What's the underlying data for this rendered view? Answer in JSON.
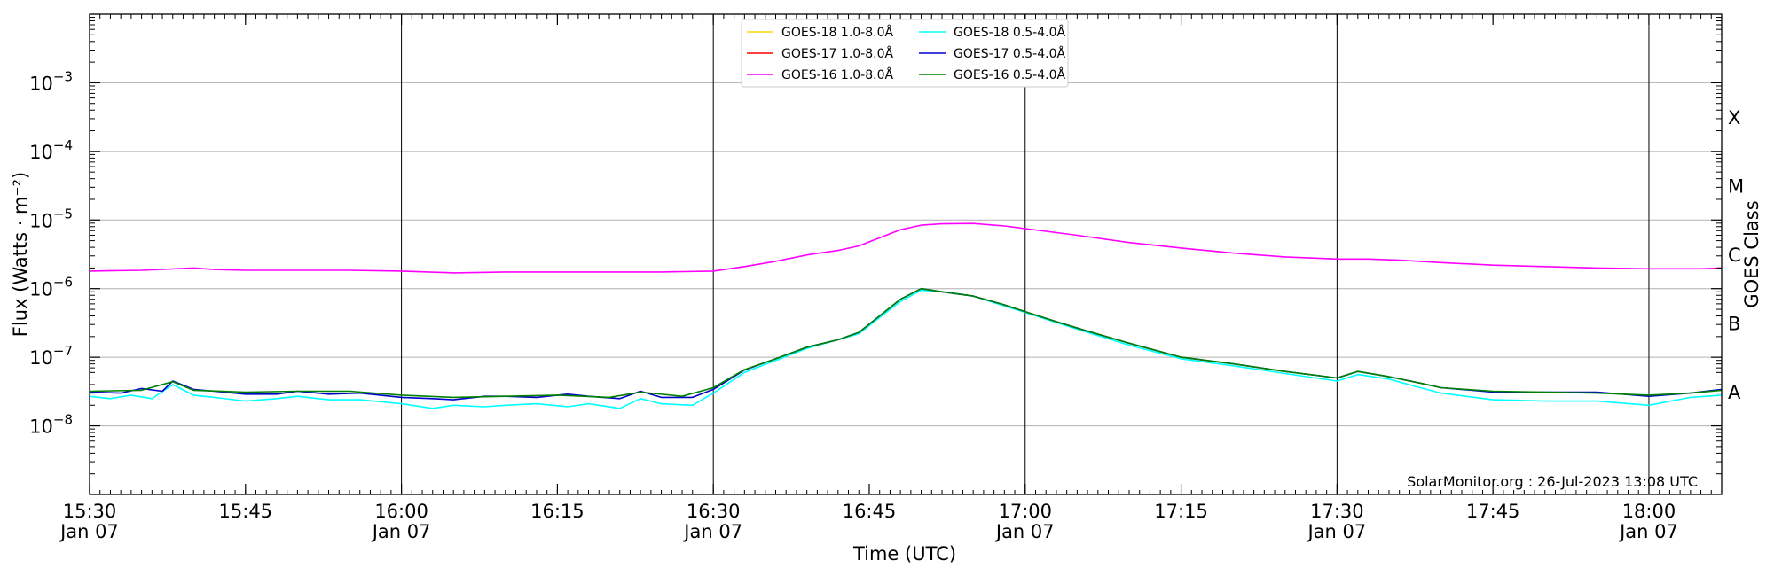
{
  "chart_data": {
    "type": "line",
    "title": "",
    "xlabel": "Time (UTC)",
    "ylabel": "Flux (Watts · m⁻²)",
    "y2label": "GOES Class",
    "yscale": "log",
    "xlim": [
      "2023-01-07 15:30",
      "2023-01-07 18:07"
    ],
    "ylim": [
      1e-09,
      0.01
    ],
    "grid": "horizontal and vertical",
    "legend_position": "top-center",
    "credit": "SolarMonitor.org : 26-Jul-2023 13:08 UTC",
    "x_ticks": [
      {
        "time": "2023-01-07 15:30",
        "label": "15:30",
        "sublabel": "Jan 07"
      },
      {
        "time": "2023-01-07 15:45",
        "label": "15:45",
        "sublabel": ""
      },
      {
        "time": "2023-01-07 16:00",
        "label": "16:00",
        "sublabel": "Jan 07"
      },
      {
        "time": "2023-01-07 16:15",
        "label": "16:15",
        "sublabel": ""
      },
      {
        "time": "2023-01-07 16:30",
        "label": "16:30",
        "sublabel": "Jan 07"
      },
      {
        "time": "2023-01-07 16:45",
        "label": "16:45",
        "sublabel": ""
      },
      {
        "time": "2023-01-07 17:00",
        "label": "17:00",
        "sublabel": "Jan 07"
      },
      {
        "time": "2023-01-07 17:15",
        "label": "17:15",
        "sublabel": ""
      },
      {
        "time": "2023-01-07 17:30",
        "label": "17:30",
        "sublabel": "Jan 07"
      },
      {
        "time": "2023-01-07 17:45",
        "label": "17:45",
        "sublabel": ""
      },
      {
        "time": "2023-01-07 18:00",
        "label": "18:00",
        "sublabel": "Jan 07"
      }
    ],
    "y_ticks": [
      {
        "value": 1e-08,
        "base": "10",
        "exp": "−8"
      },
      {
        "value": 1e-07,
        "base": "10",
        "exp": "−7"
      },
      {
        "value": 1e-06,
        "base": "10",
        "exp": "−6"
      },
      {
        "value": 1e-05,
        "base": "10",
        "exp": "−5"
      },
      {
        "value": 0.0001,
        "base": "10",
        "exp": "−4"
      },
      {
        "value": 0.001,
        "base": "10",
        "exp": "−3"
      }
    ],
    "goes_classes": [
      {
        "label": "A",
        "value": 3.16e-08
      },
      {
        "label": "B",
        "value": 3.16e-07
      },
      {
        "label": "C",
        "value": 3.16e-06
      },
      {
        "label": "M",
        "value": 3.16e-05
      },
      {
        "label": "X",
        "value": 0.000316
      }
    ],
    "series": [
      {
        "name": "GOES-18 1.0-8.0Å",
        "color": "#ffd700",
        "show_line": false,
        "ref": 0
      },
      {
        "name": "GOES-17 1.0-8.0Å",
        "color": "#ff0000",
        "show_line": false,
        "ref": 0
      },
      {
        "name": "GOES-16 1.0-8.0Å",
        "color": "#ff00ff",
        "show_line": true,
        "x": [
          "2023-01-07 15:30",
          "2023-01-07 15:35",
          "2023-01-07 15:40",
          "2023-01-07 15:42",
          "2023-01-07 15:45",
          "2023-01-07 15:50",
          "2023-01-07 15:55",
          "2023-01-07 16:00",
          "2023-01-07 16:05",
          "2023-01-07 16:10",
          "2023-01-07 16:15",
          "2023-01-07 16:20",
          "2023-01-07 16:25",
          "2023-01-07 16:30",
          "2023-01-07 16:33",
          "2023-01-07 16:36",
          "2023-01-07 16:39",
          "2023-01-07 16:42",
          "2023-01-07 16:44",
          "2023-01-07 16:46",
          "2023-01-07 16:48",
          "2023-01-07 16:50",
          "2023-01-07 16:52",
          "2023-01-07 16:55",
          "2023-01-07 16:58",
          "2023-01-07 17:00",
          "2023-01-07 17:05",
          "2023-01-07 17:10",
          "2023-01-07 17:15",
          "2023-01-07 17:20",
          "2023-01-07 17:25",
          "2023-01-07 17:30",
          "2023-01-07 17:33",
          "2023-01-07 17:36",
          "2023-01-07 17:40",
          "2023-01-07 17:45",
          "2023-01-07 17:50",
          "2023-01-07 17:55",
          "2023-01-07 18:00",
          "2023-01-07 18:05",
          "2023-01-07 18:07"
        ],
        "values": [
          1.8e-06,
          1.85e-06,
          2e-06,
          1.9e-06,
          1.85e-06,
          1.85e-06,
          1.85e-06,
          1.8e-06,
          1.7e-06,
          1.75e-06,
          1.75e-06,
          1.75e-06,
          1.75e-06,
          1.8e-06,
          2.1e-06,
          2.5e-06,
          3.1e-06,
          3.6e-06,
          4.2e-06,
          5.5e-06,
          7.2e-06,
          8.4e-06,
          8.8e-06,
          8.9e-06,
          8.2e-06,
          7.5e-06,
          6e-06,
          4.7e-06,
          3.9e-06,
          3.3e-06,
          2.9e-06,
          2.7e-06,
          2.7e-06,
          2.6e-06,
          2.4e-06,
          2.2e-06,
          2.1e-06,
          2e-06,
          1.95e-06,
          1.95e-06,
          2e-06
        ]
      },
      {
        "name": "GOES-18 0.5-4.0Å",
        "color": "#00ffff",
        "show_line": true,
        "x": [
          "2023-01-07 15:30",
          "2023-01-07 15:32",
          "2023-01-07 15:34",
          "2023-01-07 15:36",
          "2023-01-07 15:38",
          "2023-01-07 15:40",
          "2023-01-07 15:42",
          "2023-01-07 15:45",
          "2023-01-07 15:48",
          "2023-01-07 15:50",
          "2023-01-07 15:53",
          "2023-01-07 15:56",
          "2023-01-07 16:00",
          "2023-01-07 16:03",
          "2023-01-07 16:05",
          "2023-01-07 16:08",
          "2023-01-07 16:10",
          "2023-01-07 16:13",
          "2023-01-07 16:16",
          "2023-01-07 16:18",
          "2023-01-07 16:21",
          "2023-01-07 16:23",
          "2023-01-07 16:25",
          "2023-01-07 16:28",
          "2023-01-07 16:30",
          "2023-01-07 16:33",
          "2023-01-07 16:36",
          "2023-01-07 16:39",
          "2023-01-07 16:42",
          "2023-01-07 16:44",
          "2023-01-07 16:46",
          "2023-01-07 16:48",
          "2023-01-07 16:50",
          "2023-01-07 16:52",
          "2023-01-07 16:55",
          "2023-01-07 16:58",
          "2023-01-07 17:00",
          "2023-01-07 17:03",
          "2023-01-07 17:06",
          "2023-01-07 17:10",
          "2023-01-07 17:15",
          "2023-01-07 17:20",
          "2023-01-07 17:25",
          "2023-01-07 17:30",
          "2023-01-07 17:32",
          "2023-01-07 17:35",
          "2023-01-07 17:38",
          "2023-01-07 17:40",
          "2023-01-07 17:45",
          "2023-01-07 17:50",
          "2023-01-07 17:55",
          "2023-01-07 18:00",
          "2023-01-07 18:04",
          "2023-01-07 18:07"
        ],
        "values": [
          2.7e-08,
          2.5e-08,
          2.8e-08,
          2.5e-08,
          4e-08,
          2.8e-08,
          2.6e-08,
          2.3e-08,
          2.5e-08,
          2.7e-08,
          2.4e-08,
          2.4e-08,
          2.1e-08,
          1.8e-08,
          2e-08,
          1.9e-08,
          2e-08,
          2.1e-08,
          1.9e-08,
          2.1e-08,
          1.8e-08,
          2.5e-08,
          2.1e-08,
          2e-08,
          3e-08,
          6e-08,
          9e-08,
          1.35e-07,
          1.8e-07,
          2.2e-07,
          3.8e-07,
          6.5e-07,
          9.5e-07,
          9e-07,
          7.8e-07,
          5.6e-07,
          4.5e-07,
          3.2e-07,
          2.3e-07,
          1.5e-07,
          9.5e-08,
          7.5e-08,
          5.8e-08,
          4.5e-08,
          5.6e-08,
          4.8e-08,
          3.6e-08,
          3e-08,
          2.4e-08,
          2.3e-08,
          2.3e-08,
          2e-08,
          2.6e-08,
          2.8e-08
        ]
      },
      {
        "name": "GOES-17 0.5-4.0Å",
        "color": "#0000cd",
        "show_line": true,
        "x": [
          "2023-01-07 15:30",
          "2023-01-07 15:33",
          "2023-01-07 15:35",
          "2023-01-07 15:37",
          "2023-01-07 15:38",
          "2023-01-07 15:40",
          "2023-01-07 15:42",
          "2023-01-07 15:45",
          "2023-01-07 15:48",
          "2023-01-07 15:50",
          "2023-01-07 15:53",
          "2023-01-07 15:56",
          "2023-01-07 16:00",
          "2023-01-07 16:03",
          "2023-01-07 16:05",
          "2023-01-07 16:08",
          "2023-01-07 16:10",
          "2023-01-07 16:13",
          "2023-01-07 16:16",
          "2023-01-07 16:18",
          "2023-01-07 16:21",
          "2023-01-07 16:23",
          "2023-01-07 16:25",
          "2023-01-07 16:28",
          "2023-01-07 16:30",
          "2023-01-07 16:33",
          "2023-01-07 16:36",
          "2023-01-07 16:39",
          "2023-01-07 16:42",
          "2023-01-07 16:44",
          "2023-01-07 16:46",
          "2023-01-07 16:48",
          "2023-01-07 16:50",
          "2023-01-07 16:52",
          "2023-01-07 16:55",
          "2023-01-07 16:58",
          "2023-01-07 17:00",
          "2023-01-07 17:03",
          "2023-01-07 17:06",
          "2023-01-07 17:10",
          "2023-01-07 17:15",
          "2023-01-07 17:20",
          "2023-01-07 17:25",
          "2023-01-07 17:30",
          "2023-01-07 17:32",
          "2023-01-07 17:35",
          "2023-01-07 17:38",
          "2023-01-07 17:40",
          "2023-01-07 17:45",
          "2023-01-07 17:50",
          "2023-01-07 17:55",
          "2023-01-07 18:00",
          "2023-01-07 18:04",
          "2023-01-07 18:07"
        ],
        "values": [
          3.1e-08,
          3e-08,
          3.5e-08,
          3.2e-08,
          4.5e-08,
          3.4e-08,
          3.2e-08,
          2.9e-08,
          2.9e-08,
          3.2e-08,
          2.9e-08,
          3e-08,
          2.6e-08,
          2.5e-08,
          2.4e-08,
          2.7e-08,
          2.7e-08,
          2.6e-08,
          2.9e-08,
          2.7e-08,
          2.5e-08,
          3.2e-08,
          2.6e-08,
          2.6e-08,
          3.4e-08,
          6.5e-08,
          9.5e-08,
          1.4e-07,
          1.8e-07,
          2.3e-07,
          4e-07,
          7e-07,
          1e-06,
          9e-07,
          7.8e-07,
          5.8e-07,
          4.6e-07,
          3.3e-07,
          2.4e-07,
          1.6e-07,
          1e-07,
          8e-08,
          6.2e-08,
          5e-08,
          6.2e-08,
          5.2e-08,
          4.2e-08,
          3.6e-08,
          3.1e-08,
          3.1e-08,
          3.1e-08,
          2.7e-08,
          3e-08,
          3.4e-08
        ]
      },
      {
        "name": "GOES-16 0.5-4.0Å",
        "color": "#008000",
        "show_line": true,
        "x": [
          "2023-01-07 15:30",
          "2023-01-07 15:35",
          "2023-01-07 15:38",
          "2023-01-07 15:40",
          "2023-01-07 15:45",
          "2023-01-07 15:50",
          "2023-01-07 15:55",
          "2023-01-07 16:00",
          "2023-01-07 16:05",
          "2023-01-07 16:10",
          "2023-01-07 16:15",
          "2023-01-07 16:20",
          "2023-01-07 16:23",
          "2023-01-07 16:27",
          "2023-01-07 16:30",
          "2023-01-07 16:33",
          "2023-01-07 16:36",
          "2023-01-07 16:39",
          "2023-01-07 16:42",
          "2023-01-07 16:44",
          "2023-01-07 16:46",
          "2023-01-07 16:48",
          "2023-01-07 16:50",
          "2023-01-07 16:52",
          "2023-01-07 16:55",
          "2023-01-07 16:58",
          "2023-01-07 17:00",
          "2023-01-07 17:03",
          "2023-01-07 17:06",
          "2023-01-07 17:10",
          "2023-01-07 17:15",
          "2023-01-07 17:20",
          "2023-01-07 17:25",
          "2023-01-07 17:30",
          "2023-01-07 17:32",
          "2023-01-07 17:35",
          "2023-01-07 17:38",
          "2023-01-07 17:40",
          "2023-01-07 17:45",
          "2023-01-07 17:50",
          "2023-01-07 17:55",
          "2023-01-07 18:00",
          "2023-01-07 18:04",
          "2023-01-07 18:07"
        ],
        "values": [
          3.2e-08,
          3.3e-08,
          4.4e-08,
          3.3e-08,
          3.1e-08,
          3.2e-08,
          3.2e-08,
          2.8e-08,
          2.6e-08,
          2.7e-08,
          2.8e-08,
          2.6e-08,
          3.1e-08,
          2.7e-08,
          3.6e-08,
          6.6e-08,
          9.5e-08,
          1.4e-07,
          1.8e-07,
          2.3e-07,
          4e-07,
          7e-07,
          1e-06,
          9e-07,
          7.8e-07,
          5.8e-07,
          4.6e-07,
          3.3e-07,
          2.4e-07,
          1.6e-07,
          1e-07,
          8e-08,
          6.2e-08,
          5e-08,
          6.2e-08,
          5.2e-08,
          4.2e-08,
          3.6e-08,
          3.2e-08,
          3.1e-08,
          3e-08,
          2.8e-08,
          3e-08,
          3.3e-08
        ]
      }
    ]
  }
}
